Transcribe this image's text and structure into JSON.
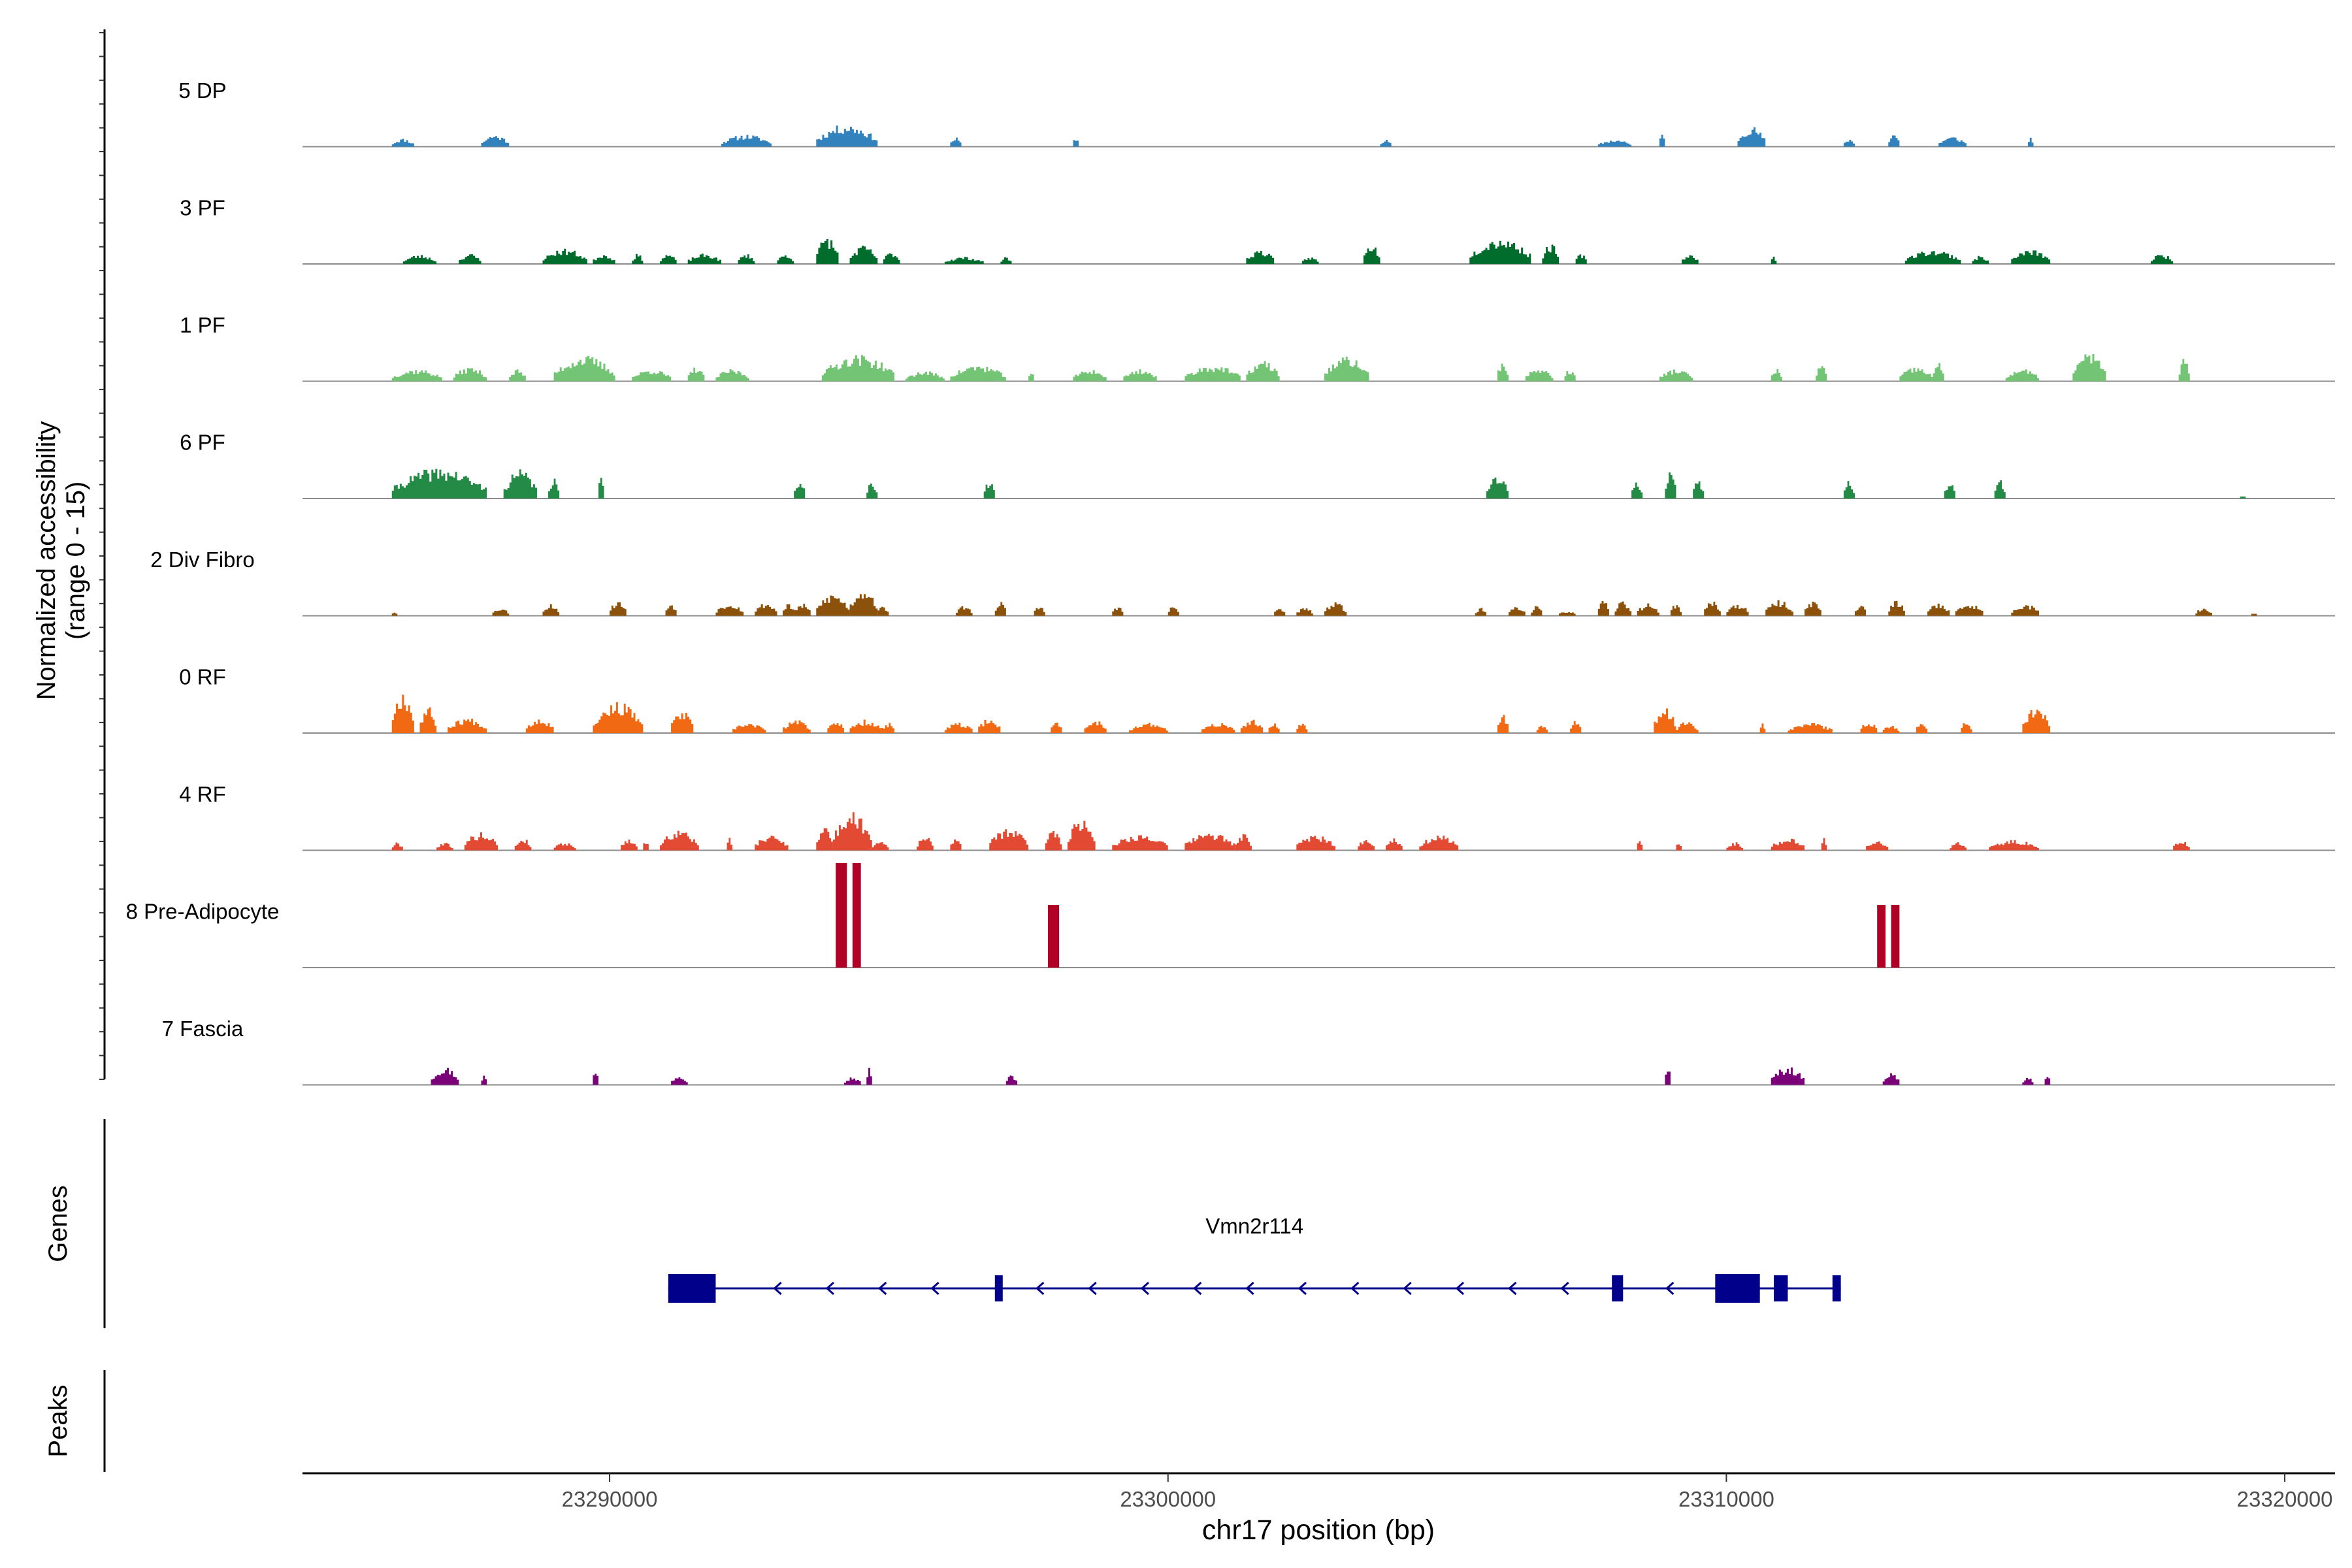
{
  "chart_data": {
    "type": "area",
    "title": "",
    "ylabel_line1": "Normalized accessibility",
    "ylabel_line2": "(range 0 - 15)",
    "xlabel": "chr17 position (bp)",
    "xlim": [
      23284500,
      23320900
    ],
    "x_ticks": [
      23290000,
      23300000,
      23310000,
      23320000
    ],
    "x_tick_labels": [
      "23290000",
      "23300000",
      "23310000",
      "23320000"
    ],
    "y_range": [
      0,
      15
    ],
    "tracks": [
      {
        "name": "5 DP",
        "color": "#3182BD",
        "bins": 360,
        "seed": 11,
        "peaks": [
          [
            23286100,
            23286500,
            0.08
          ],
          [
            23287700,
            23288200,
            0.12
          ],
          [
            23292000,
            23292900,
            0.12
          ],
          [
            23293700,
            23294800,
            0.22
          ],
          [
            23296100,
            23296300,
            0.09
          ],
          [
            23298300,
            23298400,
            0.1
          ],
          [
            23303800,
            23304000,
            0.07
          ],
          [
            23307700,
            23308300,
            0.07
          ],
          [
            23308800,
            23308900,
            0.13
          ],
          [
            23310200,
            23310700,
            0.2
          ],
          [
            23312100,
            23312300,
            0.08
          ],
          [
            23312900,
            23313100,
            0.14
          ],
          [
            23313800,
            23314300,
            0.1
          ],
          [
            23315400,
            23315500,
            0.1
          ]
        ]
      },
      {
        "name": "3 PF",
        "color": "#006D2C",
        "bins": 420,
        "seed": 23,
        "peaks": [
          [
            23286300,
            23286900,
            0.09
          ],
          [
            23287300,
            23287700,
            0.1
          ],
          [
            23288800,
            23289600,
            0.15
          ],
          [
            23289700,
            23290100,
            0.1
          ],
          [
            23290400,
            23290600,
            0.1
          ],
          [
            23290900,
            23291200,
            0.1
          ],
          [
            23291400,
            23292000,
            0.1
          ],
          [
            23292300,
            23292600,
            0.1
          ],
          [
            23293000,
            23293300,
            0.1
          ],
          [
            23293700,
            23294100,
            0.27
          ],
          [
            23294300,
            23294800,
            0.18
          ],
          [
            23294900,
            23295200,
            0.12
          ],
          [
            23296000,
            23296700,
            0.07
          ],
          [
            23297000,
            23297200,
            0.07
          ],
          [
            23301400,
            23301900,
            0.14
          ],
          [
            23302400,
            23302700,
            0.07
          ],
          [
            23303500,
            23303800,
            0.2
          ],
          [
            23305400,
            23306500,
            0.26
          ],
          [
            23306700,
            23307000,
            0.2
          ],
          [
            23307300,
            23307500,
            0.1
          ],
          [
            23309200,
            23309500,
            0.1
          ],
          [
            23310800,
            23310900,
            0.08
          ],
          [
            23313200,
            23314200,
            0.14
          ],
          [
            23314400,
            23314700,
            0.08
          ],
          [
            23315100,
            23315800,
            0.14
          ],
          [
            23317600,
            23318000,
            0.1
          ]
        ]
      },
      {
        "name": "1 PF",
        "color": "#74C476",
        "bins": 420,
        "seed": 37,
        "peaks": [
          [
            23286100,
            23287000,
            0.12
          ],
          [
            23287200,
            23287800,
            0.14
          ],
          [
            23288200,
            23288500,
            0.12
          ],
          [
            23289000,
            23290100,
            0.25
          ],
          [
            23290400,
            23291100,
            0.12
          ],
          [
            23291400,
            23291700,
            0.14
          ],
          [
            23291900,
            23292500,
            0.12
          ],
          [
            23293800,
            23295100,
            0.26
          ],
          [
            23295300,
            23296000,
            0.1
          ],
          [
            23296100,
            23297100,
            0.16
          ],
          [
            23297500,
            23297600,
            0.1
          ],
          [
            23298300,
            23298900,
            0.12
          ],
          [
            23299200,
            23299800,
            0.12
          ],
          [
            23300300,
            23301300,
            0.16
          ],
          [
            23301400,
            23302000,
            0.2
          ],
          [
            23302800,
            23303600,
            0.24
          ],
          [
            23305900,
            23306100,
            0.2
          ],
          [
            23306400,
            23306900,
            0.13
          ],
          [
            23307100,
            23307300,
            0.12
          ],
          [
            23308800,
            23309400,
            0.12
          ],
          [
            23310800,
            23311000,
            0.12
          ],
          [
            23311600,
            23311800,
            0.17
          ],
          [
            23313100,
            23313700,
            0.14
          ],
          [
            23313700,
            23313900,
            0.18
          ],
          [
            23315000,
            23315600,
            0.12
          ],
          [
            23316200,
            23316800,
            0.28
          ],
          [
            23318100,
            23318300,
            0.22
          ]
        ]
      },
      {
        "name": "6 PF",
        "color": "#238B45",
        "bins": 360,
        "seed": 41,
        "peaks": [
          [
            23286100,
            23287800,
            0.3
          ],
          [
            23288100,
            23288700,
            0.28
          ],
          [
            23288900,
            23289100,
            0.2
          ],
          [
            23289800,
            23289900,
            0.22
          ],
          [
            23293300,
            23293500,
            0.2
          ],
          [
            23294600,
            23294800,
            0.18
          ],
          [
            23296700,
            23296900,
            0.18
          ],
          [
            23305700,
            23306100,
            0.22
          ],
          [
            23308300,
            23308500,
            0.18
          ],
          [
            23308900,
            23309100,
            0.3
          ],
          [
            23309400,
            23309600,
            0.18
          ],
          [
            23312100,
            23312300,
            0.18
          ],
          [
            23313900,
            23314100,
            0.18
          ],
          [
            23314800,
            23315000,
            0.18
          ],
          [
            23319200,
            23319300,
            0.03
          ]
        ]
      },
      {
        "name": "2 Div Fibro",
        "color": "#8C510A",
        "bins": 420,
        "seed": 53,
        "peaks": [
          [
            23286100,
            23286200,
            0.05
          ],
          [
            23287900,
            23288200,
            0.08
          ],
          [
            23288800,
            23289100,
            0.12
          ],
          [
            23290000,
            23290300,
            0.15
          ],
          [
            23291000,
            23291200,
            0.13
          ],
          [
            23291900,
            23292400,
            0.13
          ],
          [
            23292600,
            23293000,
            0.13
          ],
          [
            23293100,
            23293300,
            0.13
          ],
          [
            23293300,
            23293600,
            0.12
          ],
          [
            23293700,
            23294300,
            0.22
          ],
          [
            23294300,
            23294800,
            0.28
          ],
          [
            23294800,
            23295000,
            0.1
          ],
          [
            23296200,
            23296500,
            0.1
          ],
          [
            23296900,
            23297100,
            0.15
          ],
          [
            23297600,
            23297800,
            0.1
          ],
          [
            23299000,
            23299200,
            0.1
          ],
          [
            23300000,
            23300200,
            0.1
          ],
          [
            23301900,
            23302100,
            0.08
          ],
          [
            23302300,
            23302600,
            0.08
          ],
          [
            23302800,
            23303200,
            0.13
          ],
          [
            23305500,
            23305700,
            0.08
          ],
          [
            23306100,
            23306400,
            0.1
          ],
          [
            23306500,
            23306700,
            0.1
          ],
          [
            23307000,
            23307300,
            0.05
          ],
          [
            23307700,
            23307900,
            0.15
          ],
          [
            23308000,
            23308300,
            0.15
          ],
          [
            23308400,
            23308800,
            0.12
          ],
          [
            23309000,
            23309200,
            0.12
          ],
          [
            23309600,
            23309900,
            0.15
          ],
          [
            23310000,
            23310400,
            0.12
          ],
          [
            23310700,
            23311200,
            0.15
          ],
          [
            23311400,
            23311700,
            0.15
          ],
          [
            23312300,
            23312500,
            0.12
          ],
          [
            23312900,
            23313200,
            0.15
          ],
          [
            23313600,
            23314000,
            0.13
          ],
          [
            23314100,
            23314600,
            0.12
          ],
          [
            23315100,
            23315600,
            0.12
          ],
          [
            23318400,
            23318700,
            0.08
          ],
          [
            23319400,
            23319500,
            0.02
          ]
        ]
      },
      {
        "name": "0 RF",
        "color": "#F16913",
        "bins": 420,
        "seed": 67,
        "peaks": [
          [
            23286100,
            23286500,
            0.42
          ],
          [
            23286600,
            23286900,
            0.26
          ],
          [
            23287100,
            23287800,
            0.15
          ],
          [
            23288500,
            23289000,
            0.15
          ],
          [
            23289700,
            23290600,
            0.3
          ],
          [
            23291100,
            23291500,
            0.22
          ],
          [
            23292200,
            23292800,
            0.1
          ],
          [
            23293100,
            23293600,
            0.13
          ],
          [
            23293900,
            23294200,
            0.13
          ],
          [
            23294300,
            23294900,
            0.13
          ],
          [
            23294900,
            23295100,
            0.1
          ],
          [
            23296000,
            23296500,
            0.1
          ],
          [
            23296600,
            23297000,
            0.15
          ],
          [
            23297900,
            23298100,
            0.12
          ],
          [
            23298500,
            23298900,
            0.13
          ],
          [
            23299300,
            23300000,
            0.1
          ],
          [
            23300600,
            23301200,
            0.1
          ],
          [
            23301300,
            23301700,
            0.13
          ],
          [
            23301800,
            23302000,
            0.1
          ],
          [
            23302300,
            23302500,
            0.1
          ],
          [
            23305900,
            23306100,
            0.2
          ],
          [
            23306600,
            23306800,
            0.08
          ],
          [
            23307200,
            23307400,
            0.12
          ],
          [
            23308700,
            23309100,
            0.25
          ],
          [
            23309100,
            23309500,
            0.12
          ],
          [
            23310600,
            23310700,
            0.1
          ],
          [
            23311100,
            23311900,
            0.1
          ],
          [
            23312400,
            23312700,
            0.12
          ],
          [
            23312800,
            23313100,
            0.08
          ],
          [
            23313400,
            23313600,
            0.12
          ],
          [
            23314200,
            23314400,
            0.12
          ],
          [
            23315300,
            23315800,
            0.27
          ]
        ]
      },
      {
        "name": "4 RF",
        "color": "#E34A33",
        "bins": 420,
        "seed": 79,
        "peaks": [
          [
            23286100,
            23286300,
            0.08
          ],
          [
            23286900,
            23287200,
            0.08
          ],
          [
            23287400,
            23288000,
            0.18
          ],
          [
            23288300,
            23288600,
            0.12
          ],
          [
            23289000,
            23289400,
            0.08
          ],
          [
            23290200,
            23290500,
            0.12
          ],
          [
            23290600,
            23290700,
            0.1
          ],
          [
            23290900,
            23291600,
            0.2
          ],
          [
            23292100,
            23292200,
            0.12
          ],
          [
            23292600,
            23293200,
            0.15
          ],
          [
            23293700,
            23294000,
            0.25
          ],
          [
            23294000,
            23294700,
            0.38
          ],
          [
            23294700,
            23295000,
            0.1
          ],
          [
            23295500,
            23295800,
            0.14
          ],
          [
            23296100,
            23296300,
            0.14
          ],
          [
            23296800,
            23297500,
            0.22
          ],
          [
            23297800,
            23298100,
            0.22
          ],
          [
            23298200,
            23298700,
            0.32
          ],
          [
            23299000,
            23300000,
            0.16
          ],
          [
            23300300,
            23301200,
            0.18
          ],
          [
            23301200,
            23301500,
            0.16
          ],
          [
            23302300,
            23303000,
            0.15
          ],
          [
            23303400,
            23303700,
            0.12
          ],
          [
            23303900,
            23304200,
            0.12
          ],
          [
            23304500,
            23305200,
            0.15
          ],
          [
            23308400,
            23308500,
            0.1
          ],
          [
            23309100,
            23309200,
            0.1
          ],
          [
            23310000,
            23310300,
            0.08
          ],
          [
            23310800,
            23311400,
            0.12
          ],
          [
            23311700,
            23311800,
            0.12
          ],
          [
            23312500,
            23312900,
            0.1
          ],
          [
            23314000,
            23314300,
            0.08
          ],
          [
            23314700,
            23315600,
            0.1
          ],
          [
            23318000,
            23318300,
            0.1
          ]
        ]
      },
      {
        "name": "8 Pre-Adipocyte",
        "color": "#B10026",
        "bins": 0,
        "seed": 0,
        "peaks": [
          [
            23294050,
            23294250,
            1.0
          ],
          [
            23294350,
            23294500,
            1.0
          ],
          [
            23297850,
            23298050,
            0.6
          ],
          [
            23312700,
            23312850,
            0.6
          ],
          [
            23312950,
            23313100,
            0.6
          ]
        ]
      },
      {
        "name": "7 Fascia",
        "color": "#7A0177",
        "bins": 360,
        "seed": 97,
        "peaks": [
          [
            23286800,
            23287300,
            0.18
          ],
          [
            23287700,
            23287800,
            0.1
          ],
          [
            23289700,
            23289800,
            0.15
          ],
          [
            23291100,
            23291400,
            0.1
          ],
          [
            23294200,
            23294500,
            0.08
          ],
          [
            23294600,
            23294700,
            0.18
          ],
          [
            23297100,
            23297300,
            0.1
          ],
          [
            23308900,
            23309000,
            0.2
          ],
          [
            23310800,
            23311400,
            0.18
          ],
          [
            23312800,
            23313100,
            0.12
          ],
          [
            23315300,
            23315500,
            0.08
          ],
          [
            23315700,
            23315800,
            0.1
          ]
        ]
      }
    ],
    "gene": {
      "label": "Vmn2r114",
      "strand": "-",
      "start": 23291050,
      "end": 23312050,
      "exons": [
        [
          23291050,
          23291900
        ],
        [
          23296900,
          23297000
        ],
        [
          23307950,
          23308150
        ],
        [
          23309800,
          23310600
        ],
        [
          23310850,
          23311100
        ],
        [
          23311900,
          23312050
        ]
      ]
    },
    "panel_labels": {
      "genes": "Genes",
      "peaks": "Peaks"
    },
    "colors": {
      "baseline": "#8c8c8c",
      "gene": "#00008B",
      "axis": "#000000",
      "tick_text": "#4d4d4d"
    }
  }
}
